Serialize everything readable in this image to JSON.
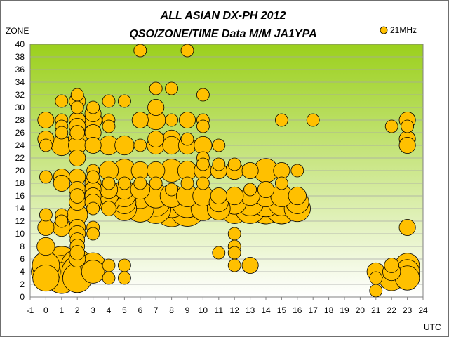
{
  "chart_data": {
    "type": "scatter",
    "title": "ALL ASIAN DX-PH 2012",
    "subtitle": "QSO/ZONE/TIME Data M/M JA1YPA",
    "xlabel": "UTC",
    "ylabel": "ZONE",
    "xlim": [
      -1,
      24
    ],
    "ylim": [
      0,
      40
    ],
    "x_ticks": [
      "-1",
      "0",
      "1",
      "2",
      "3",
      "4",
      "5",
      "6",
      "7",
      "8",
      "9",
      "10",
      "11",
      "12",
      "13",
      "14",
      "15",
      "16",
      "17",
      "18",
      "19",
      "20",
      "21",
      "22",
      "23",
      "24"
    ],
    "y_ticks": [
      "0",
      "2",
      "4",
      "6",
      "8",
      "10",
      "12",
      "14",
      "16",
      "18",
      "20",
      "22",
      "24",
      "26",
      "28",
      "30",
      "32",
      "34",
      "36",
      "38",
      "40"
    ],
    "grid": true,
    "legend_position": "top-right",
    "bubble_color": "#ffc000",
    "plot_background": [
      "#9bd01c",
      "#ffffff"
    ],
    "series": [
      {
        "name": "21MHz",
        "points": [
          [
            0,
            28,
            5
          ],
          [
            0,
            25,
            5
          ],
          [
            0,
            24,
            3
          ],
          [
            0,
            19,
            3
          ],
          [
            0,
            13,
            3
          ],
          [
            0,
            11,
            5
          ],
          [
            0,
            8,
            6
          ],
          [
            0,
            5,
            14
          ],
          [
            0,
            4,
            16
          ],
          [
            0,
            3,
            13
          ],
          [
            1,
            31,
            3
          ],
          [
            1,
            28,
            3
          ],
          [
            1,
            27,
            3
          ],
          [
            1,
            26,
            3
          ],
          [
            1,
            24,
            8
          ],
          [
            1,
            19,
            5
          ],
          [
            1,
            18,
            5
          ],
          [
            1,
            13,
            3
          ],
          [
            1,
            12,
            3
          ],
          [
            1,
            11,
            6
          ],
          [
            1,
            5,
            27
          ],
          [
            1,
            4,
            20
          ],
          [
            1,
            3,
            18
          ],
          [
            2,
            32,
            3
          ],
          [
            2,
            31,
            5
          ],
          [
            2,
            30,
            3
          ],
          [
            2,
            28,
            5
          ],
          [
            2,
            27,
            5
          ],
          [
            2,
            26,
            4
          ],
          [
            2,
            25,
            6
          ],
          [
            2,
            24,
            6
          ],
          [
            2,
            22,
            5
          ],
          [
            2,
            19,
            5
          ],
          [
            2,
            17,
            5
          ],
          [
            2,
            16,
            4
          ],
          [
            2,
            15,
            5
          ],
          [
            2,
            13,
            8
          ],
          [
            2,
            11,
            5
          ],
          [
            2,
            10,
            5
          ],
          [
            2,
            9,
            4
          ],
          [
            2,
            8,
            4
          ],
          [
            2,
            7,
            4
          ],
          [
            2,
            6,
            5
          ],
          [
            2,
            5,
            19
          ],
          [
            2,
            4,
            18
          ],
          [
            2,
            3,
            16
          ],
          [
            3,
            30,
            3
          ],
          [
            3,
            29,
            5
          ],
          [
            3,
            28,
            6
          ],
          [
            3,
            26,
            5
          ],
          [
            3,
            24,
            5
          ],
          [
            3,
            20,
            3
          ],
          [
            3,
            19,
            3
          ],
          [
            3,
            18,
            5
          ],
          [
            3,
            17,
            5
          ],
          [
            3,
            16,
            5
          ],
          [
            3,
            15,
            5
          ],
          [
            3,
            14,
            3
          ],
          [
            3,
            11,
            3
          ],
          [
            3,
            10,
            3
          ],
          [
            3,
            5,
            12
          ],
          [
            3,
            4,
            10
          ],
          [
            4,
            31,
            3
          ],
          [
            4,
            28,
            3
          ],
          [
            4,
            27,
            3
          ],
          [
            4,
            24,
            7
          ],
          [
            4,
            20,
            7
          ],
          [
            4,
            18,
            3
          ],
          [
            4,
            17,
            6
          ],
          [
            4,
            16,
            7
          ],
          [
            4,
            15,
            8
          ],
          [
            4,
            14,
            4
          ],
          [
            4,
            5,
            3
          ],
          [
            4,
            3,
            3
          ],
          [
            5,
            31,
            3
          ],
          [
            5,
            24,
            7
          ],
          [
            5,
            20,
            10
          ],
          [
            5,
            18,
            3
          ],
          [
            5,
            17,
            7
          ],
          [
            5,
            16,
            9
          ],
          [
            5,
            15,
            10
          ],
          [
            5,
            14,
            11
          ],
          [
            5,
            5,
            3
          ],
          [
            5,
            3,
            3
          ],
          [
            6,
            39,
            3
          ],
          [
            6,
            28,
            5
          ],
          [
            6,
            24,
            3
          ],
          [
            6,
            20,
            6
          ],
          [
            6,
            18,
            3
          ],
          [
            6,
            17,
            7
          ],
          [
            6,
            16,
            12
          ],
          [
            6,
            15,
            14
          ],
          [
            6,
            14,
            14
          ],
          [
            7,
            33,
            3
          ],
          [
            7,
            30,
            5
          ],
          [
            7,
            28,
            7
          ],
          [
            7,
            25,
            5
          ],
          [
            7,
            24,
            6
          ],
          [
            7,
            20,
            6
          ],
          [
            7,
            18,
            3
          ],
          [
            7,
            16,
            11
          ],
          [
            7,
            15,
            15
          ],
          [
            7,
            14,
            17
          ],
          [
            8,
            33,
            3
          ],
          [
            8,
            28,
            3
          ],
          [
            8,
            25,
            6
          ],
          [
            8,
            24,
            6
          ],
          [
            8,
            20,
            10
          ],
          [
            8,
            17,
            3
          ],
          [
            8,
            16,
            10
          ],
          [
            8,
            15,
            18
          ],
          [
            8,
            14,
            25
          ],
          [
            9,
            39,
            3
          ],
          [
            9,
            28,
            5
          ],
          [
            9,
            25,
            3
          ],
          [
            9,
            24,
            6
          ],
          [
            9,
            20,
            7
          ],
          [
            9,
            18,
            3
          ],
          [
            9,
            16,
            9
          ],
          [
            9,
            15,
            18
          ],
          [
            9,
            14,
            24
          ],
          [
            10,
            32,
            3
          ],
          [
            10,
            28,
            3
          ],
          [
            10,
            27,
            3
          ],
          [
            10,
            24,
            6
          ],
          [
            10,
            22,
            3
          ],
          [
            10,
            21,
            3
          ],
          [
            10,
            20,
            6
          ],
          [
            10,
            18,
            3
          ],
          [
            10,
            16,
            8
          ],
          [
            10,
            15,
            12
          ],
          [
            10,
            14,
            11
          ],
          [
            11,
            24,
            3
          ],
          [
            11,
            21,
            3
          ],
          [
            11,
            20,
            5
          ],
          [
            11,
            16,
            5
          ],
          [
            11,
            15,
            7
          ],
          [
            11,
            14,
            10
          ],
          [
            11,
            7,
            3
          ],
          [
            12,
            21,
            3
          ],
          [
            12,
            20,
            6
          ],
          [
            12,
            16,
            6
          ],
          [
            12,
            15,
            11
          ],
          [
            12,
            14,
            17
          ],
          [
            12,
            10,
            3
          ],
          [
            12,
            8,
            3
          ],
          [
            12,
            7,
            3
          ],
          [
            12,
            5,
            3
          ],
          [
            13,
            20,
            5
          ],
          [
            13,
            17,
            3
          ],
          [
            13,
            16,
            7
          ],
          [
            13,
            15,
            14
          ],
          [
            13,
            14,
            17
          ],
          [
            13,
            5,
            5
          ],
          [
            14,
            20,
            11
          ],
          [
            14,
            17,
            5
          ],
          [
            14,
            16,
            9
          ],
          [
            14,
            15,
            16
          ],
          [
            14,
            14,
            18
          ],
          [
            15,
            28,
            3
          ],
          [
            15,
            20,
            5
          ],
          [
            15,
            18,
            3
          ],
          [
            15,
            16,
            9
          ],
          [
            15,
            15,
            14
          ],
          [
            15,
            14,
            18
          ],
          [
            16,
            20,
            3
          ],
          [
            16,
            16,
            6
          ],
          [
            16,
            15,
            10
          ],
          [
            16,
            14,
            13
          ],
          [
            17,
            28,
            3
          ],
          [
            21,
            4,
            6
          ],
          [
            21,
            3,
            3
          ],
          [
            21,
            1,
            3
          ],
          [
            22,
            27,
            3
          ],
          [
            22,
            5,
            4
          ],
          [
            22,
            4,
            6
          ],
          [
            22,
            3,
            12
          ],
          [
            23,
            28,
            5
          ],
          [
            23,
            27,
            3
          ],
          [
            23,
            25,
            5
          ],
          [
            23,
            24,
            5
          ],
          [
            23,
            11,
            5
          ],
          [
            23,
            5,
            11
          ],
          [
            23,
            4,
            11
          ],
          [
            23,
            3,
            11
          ]
        ]
      }
    ]
  }
}
